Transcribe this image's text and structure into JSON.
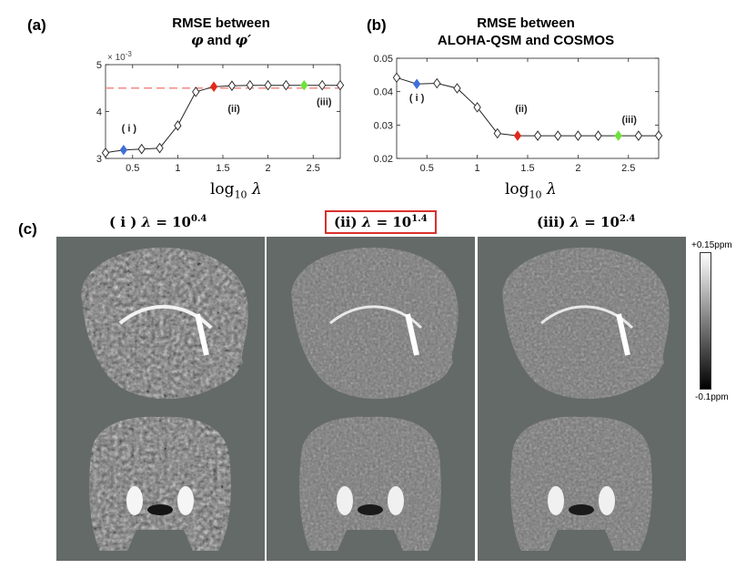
{
  "panels": {
    "a": {
      "letter": "(a)",
      "title_line1": "RMSE between",
      "title_phi": "φ",
      "title_and": " and ",
      "title_phi_prime": "φ′"
    },
    "b": {
      "letter": "(b)",
      "title_line1": "RMSE between",
      "title_line2": "ALOHA-QSM and COSMOS"
    },
    "c": {
      "letter": "(c)",
      "images": [
        {
          "prefix": "( i ) ",
          "lambda_sym": "λ",
          "eq": " = 10",
          "exp": "0.4",
          "highlighted": false
        },
        {
          "prefix": "(ii) ",
          "lambda_sym": "λ",
          "eq": " = 10",
          "exp": "1.4",
          "highlighted": true
        },
        {
          "prefix": "(iii) ",
          "lambda_sym": "λ",
          "eq": " = 10",
          "exp": "2.4",
          "highlighted": false
        }
      ],
      "colorbar": {
        "max_label": "+0.15ppm",
        "min_label": "-0.1ppm"
      }
    }
  },
  "xlabel": {
    "text": "log",
    "sub": "10",
    "lambda": "λ"
  },
  "chart_data": [
    {
      "type": "line",
      "x": [
        0.2,
        0.4,
        0.6,
        0.8,
        1.0,
        1.2,
        1.4,
        1.6,
        1.8,
        2.0,
        2.2,
        2.4,
        2.6,
        2.8
      ],
      "series": [
        {
          "values": [
            3.12,
            3.18,
            3.2,
            3.22,
            3.7,
            4.42,
            4.53,
            4.55,
            4.56,
            4.56,
            4.56,
            4.56,
            4.56,
            4.56
          ]
        }
      ],
      "xlim": [
        0.2,
        2.8
      ],
      "ylim": [
        3,
        5
      ],
      "xticks": [
        0.5,
        1,
        1.5,
        2,
        2.5
      ],
      "xtick_labels": [
        "0.5",
        "1",
        "1.5",
        "2",
        "2.5"
      ],
      "yticks": [
        3,
        4,
        5
      ],
      "ytick_labels": [
        "3",
        "4",
        "5"
      ],
      "y_exponent": "× 10",
      "y_exponent_power": "-3",
      "reference_line": {
        "y": 4.5,
        "color": "#f28b85",
        "style": "dashed"
      },
      "highlights": [
        {
          "x": 0.4,
          "color": "#3f6fd8",
          "label": "( i )"
        },
        {
          "x": 1.4,
          "color": "#e2291c",
          "label": "(ii)"
        },
        {
          "x": 2.4,
          "color": "#6fe23a",
          "label": "(iii)"
        }
      ]
    },
    {
      "type": "line",
      "x": [
        0.2,
        0.4,
        0.6,
        0.8,
        1.0,
        1.2,
        1.4,
        1.6,
        1.8,
        2.0,
        2.2,
        2.4,
        2.6,
        2.8
      ],
      "series": [
        {
          "values": [
            0.0442,
            0.0423,
            0.0425,
            0.041,
            0.0353,
            0.0275,
            0.0268,
            0.0268,
            0.0268,
            0.0268,
            0.0268,
            0.0268,
            0.0268,
            0.0268
          ]
        }
      ],
      "xlim": [
        0.2,
        2.8
      ],
      "ylim": [
        0.02,
        0.05
      ],
      "xticks": [
        0.5,
        1,
        1.5,
        2,
        2.5
      ],
      "xtick_labels": [
        "0.5",
        "1",
        "1.5",
        "2",
        "2.5"
      ],
      "yticks": [
        0.02,
        0.03,
        0.04,
        0.05
      ],
      "ytick_labels": [
        "0.02",
        "0.03",
        "0.04",
        "0.05"
      ],
      "highlights": [
        {
          "x": 0.4,
          "color": "#3f6fd8",
          "label": "( i )"
        },
        {
          "x": 1.4,
          "color": "#e2291c",
          "label": "(ii)"
        },
        {
          "x": 2.4,
          "color": "#6fe23a",
          "label": "(iii)"
        }
      ]
    }
  ]
}
